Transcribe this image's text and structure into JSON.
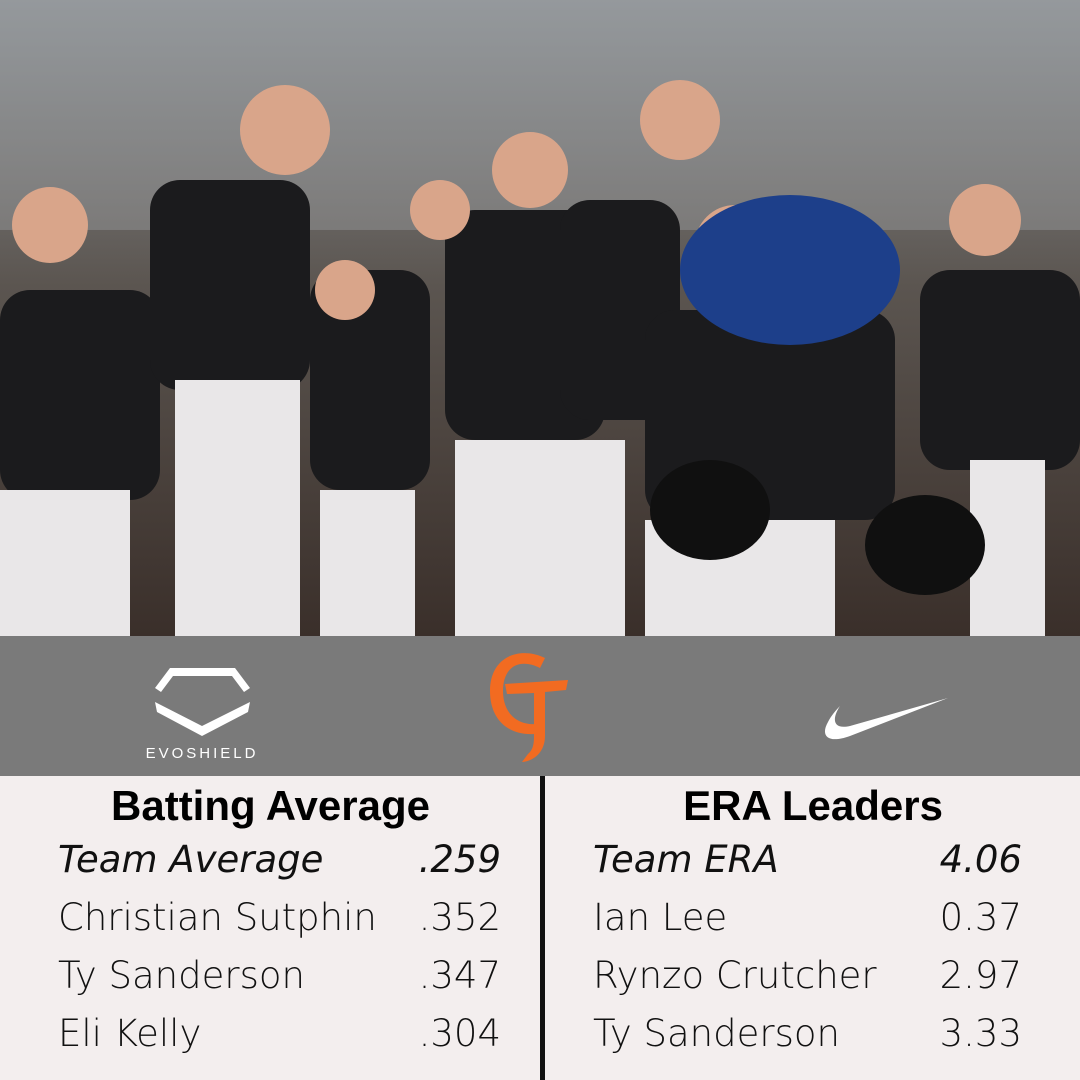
{
  "sponsor": "EVOSHIELD",
  "batting": {
    "title": "Batting Average",
    "rows": [
      [
        "Team Average",
        ".259"
      ],
      [
        "Christian Sutphin",
        ".352"
      ],
      [
        "Ty Sanderson",
        ".347"
      ],
      [
        "Eli Kelly",
        ".304"
      ]
    ]
  },
  "era": {
    "title": "ERA Leaders",
    "rows": [
      [
        "Team ERA",
        "4.06"
      ],
      [
        "Ian Lee",
        "0.37"
      ],
      [
        "Rynzo Crutcher",
        "2.97"
      ],
      [
        "Ty Sanderson",
        "3.33"
      ]
    ]
  }
}
